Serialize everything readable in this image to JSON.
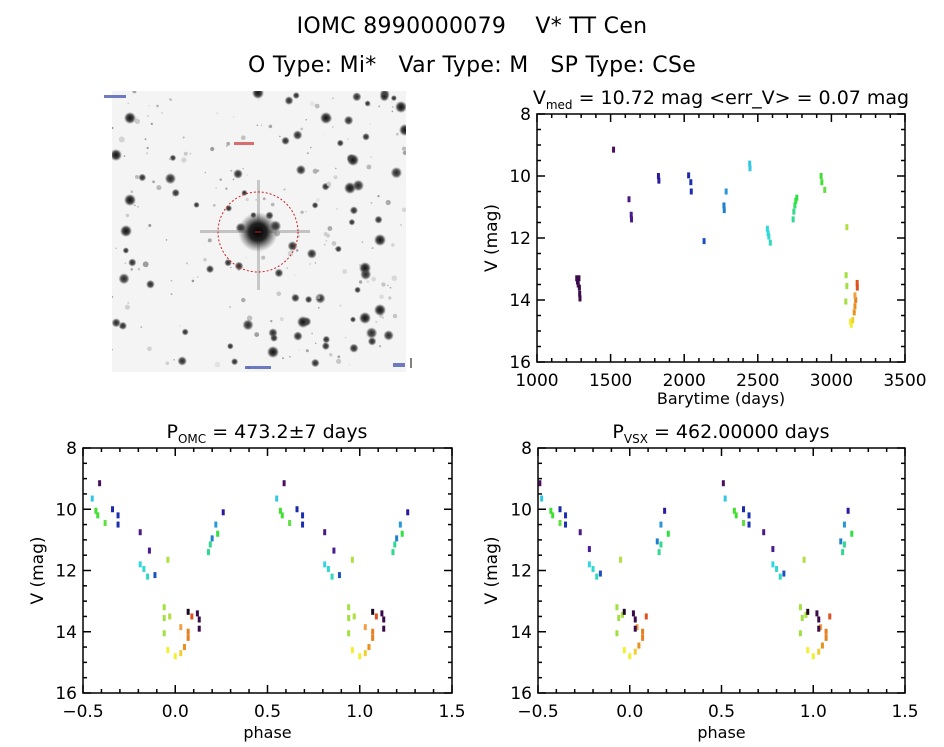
{
  "header": {
    "title": "IOMC 8990000079    V* TT Cen",
    "subtitle": "O Type: Mi*   Var Type: M   SP Type: CSe"
  },
  "sky_image": {
    "description": "Greyscale star field thumbnail centered on target with red dashed circle",
    "marker_color": "#cc2222",
    "labels": [
      "DSS image label",
      "target label",
      "scale label"
    ]
  },
  "chart_data": [
    {
      "type": "scatter",
      "id": "lightcurve",
      "title": "V_med = 10.72 mag <err_V> = 0.07 mag",
      "title_parts": {
        "main": "V",
        "sub": "med",
        "rest": " = 10.72 mag <err_V> = 0.07 mag"
      },
      "xlabel": "Barytime (days)",
      "ylabel": "V (mag)",
      "xlim": [
        1000,
        3500
      ],
      "ylim": [
        16,
        8
      ],
      "y_inverted": true,
      "xticks": [
        1000,
        1500,
        2000,
        2500,
        3000,
        3500
      ],
      "yticks": [
        8,
        10,
        12,
        14,
        16
      ],
      "x_minor_step": 100,
      "y_minor_step": 0.5,
      "grid": false,
      "colormap": "rainbow by time",
      "points": [
        {
          "x": 1270,
          "y": 13.3,
          "c": "#3a0a4a"
        },
        {
          "x": 1275,
          "y": 13.4,
          "c": "#3a0a4a"
        },
        {
          "x": 1280,
          "y": 13.5,
          "c": "#3a0a4a"
        },
        {
          "x": 1285,
          "y": 13.3,
          "c": "#3a0a4a"
        },
        {
          "x": 1288,
          "y": 13.6,
          "c": "#3a0a4a"
        },
        {
          "x": 1290,
          "y": 13.8,
          "c": "#3a0a4a"
        },
        {
          "x": 1292,
          "y": 13.95,
          "c": "#3a0a4a"
        },
        {
          "x": 1520,
          "y": 9.15,
          "c": "#4a1060"
        },
        {
          "x": 1625,
          "y": 10.75,
          "c": "#4a1a80"
        },
        {
          "x": 1640,
          "y": 11.25,
          "c": "#4a1a90"
        },
        {
          "x": 1642,
          "y": 11.4,
          "c": "#4a1a90"
        },
        {
          "x": 1825,
          "y": 10.0,
          "c": "#2a1aa0"
        },
        {
          "x": 1828,
          "y": 10.15,
          "c": "#2a1aa0"
        },
        {
          "x": 2030,
          "y": 9.98,
          "c": "#1a2aa8"
        },
        {
          "x": 2045,
          "y": 10.2,
          "c": "#1a30b0"
        },
        {
          "x": 2048,
          "y": 10.5,
          "c": "#1a30b0"
        },
        {
          "x": 2135,
          "y": 12.1,
          "c": "#1a50c0"
        },
        {
          "x": 2270,
          "y": 10.95,
          "c": "#2080d0"
        },
        {
          "x": 2272,
          "y": 11.1,
          "c": "#2080d0"
        },
        {
          "x": 2285,
          "y": 10.5,
          "c": "#2a98d8"
        },
        {
          "x": 2445,
          "y": 9.6,
          "c": "#30c8e0"
        },
        {
          "x": 2447,
          "y": 9.75,
          "c": "#30c8e0"
        },
        {
          "x": 2565,
          "y": 11.7,
          "c": "#30d8e0"
        },
        {
          "x": 2570,
          "y": 11.85,
          "c": "#30d8e0"
        },
        {
          "x": 2575,
          "y": 11.95,
          "c": "#30d8d0"
        },
        {
          "x": 2585,
          "y": 12.15,
          "c": "#30d8c0"
        },
        {
          "x": 2740,
          "y": 11.4,
          "c": "#30d890"
        },
        {
          "x": 2745,
          "y": 11.15,
          "c": "#30d890"
        },
        {
          "x": 2752,
          "y": 10.95,
          "c": "#30e060"
        },
        {
          "x": 2758,
          "y": 10.8,
          "c": "#30e040"
        },
        {
          "x": 2765,
          "y": 10.7,
          "c": "#30e040"
        },
        {
          "x": 2930,
          "y": 10.0,
          "c": "#40e030"
        },
        {
          "x": 2935,
          "y": 10.2,
          "c": "#40e030"
        },
        {
          "x": 2955,
          "y": 10.45,
          "c": "#60e040"
        },
        {
          "x": 3105,
          "y": 11.65,
          "c": "#b0e040"
        },
        {
          "x": 3100,
          "y": 13.2,
          "c": "#a0e040"
        },
        {
          "x": 3105,
          "y": 13.55,
          "c": "#a0e040"
        },
        {
          "x": 3098,
          "y": 14.05,
          "c": "#a0e040"
        },
        {
          "x": 3130,
          "y": 14.7,
          "c": "#f0f030"
        },
        {
          "x": 3135,
          "y": 14.8,
          "c": "#f0f030"
        },
        {
          "x": 3145,
          "y": 14.65,
          "c": "#f0d030"
        },
        {
          "x": 3155,
          "y": 14.4,
          "c": "#e89020"
        },
        {
          "x": 3160,
          "y": 14.2,
          "c": "#e89020"
        },
        {
          "x": 3165,
          "y": 14.0,
          "c": "#e88020"
        },
        {
          "x": 3160,
          "y": 13.85,
          "c": "#f0a040"
        },
        {
          "x": 3175,
          "y": 13.45,
          "c": "#e05020"
        },
        {
          "x": 3176,
          "y": 13.6,
          "c": "#e05020"
        }
      ]
    },
    {
      "type": "scatter",
      "id": "phase_omc",
      "title": "P_OMC = 473.2±7 days",
      "title_parts": {
        "main": "P",
        "sub": "OMC",
        "rest": " = 473.2±7 days"
      },
      "xlabel": "phase",
      "ylabel": "V (mag)",
      "xlim": [
        -0.5,
        1.5
      ],
      "ylim": [
        16,
        8
      ],
      "y_inverted": true,
      "xticks": [
        "-0.5",
        "0.0",
        "0.5",
        "1.0",
        "1.5"
      ],
      "yticks": [
        8,
        10,
        12,
        14,
        16
      ],
      "x_minor_step": 0.1,
      "y_minor_step": 0.5,
      "grid": false,
      "period_days": 473.2,
      "points": [
        {
          "x": -0.41,
          "y": 9.15,
          "c": "#4a1060"
        },
        {
          "x": -0.45,
          "y": 9.65,
          "c": "#30c8e0"
        },
        {
          "x": -0.43,
          "y": 10.05,
          "c": "#40e030"
        },
        {
          "x": -0.42,
          "y": 10.2,
          "c": "#40e030"
        },
        {
          "x": -0.38,
          "y": 10.45,
          "c": "#60e040"
        },
        {
          "x": -0.34,
          "y": 10.0,
          "c": "#1a2aa8"
        },
        {
          "x": -0.31,
          "y": 10.2,
          "c": "#1a30b0"
        },
        {
          "x": -0.31,
          "y": 10.5,
          "c": "#1a30b0"
        },
        {
          "x": -0.19,
          "y": 10.75,
          "c": "#4a1a80"
        },
        {
          "x": -0.14,
          "y": 11.35,
          "c": "#4a1a90"
        },
        {
          "x": -0.19,
          "y": 11.8,
          "c": "#30d8e0"
        },
        {
          "x": -0.17,
          "y": 11.95,
          "c": "#30d8d0"
        },
        {
          "x": -0.15,
          "y": 12.2,
          "c": "#30d8c0"
        },
        {
          "x": -0.11,
          "y": 12.15,
          "c": "#1a50c0"
        },
        {
          "x": -0.04,
          "y": 11.65,
          "c": "#b0e040"
        },
        {
          "x": 0.18,
          "y": 11.4,
          "c": "#30d890"
        },
        {
          "x": 0.19,
          "y": 11.15,
          "c": "#30d890"
        },
        {
          "x": 0.2,
          "y": 10.95,
          "c": "#2080d0"
        },
        {
          "x": 0.23,
          "y": 10.8,
          "c": "#30e040"
        },
        {
          "x": 0.22,
          "y": 10.5,
          "c": "#2a98d8"
        },
        {
          "x": 0.26,
          "y": 10.1,
          "c": "#2a1aa0"
        },
        {
          "x": -0.06,
          "y": 13.2,
          "c": "#a0e040"
        },
        {
          "x": -0.06,
          "y": 13.55,
          "c": "#a0e040"
        },
        {
          "x": -0.06,
          "y": 14.05,
          "c": "#a0e040"
        },
        {
          "x": -0.03,
          "y": 13.5,
          "c": "#b0e040"
        },
        {
          "x": -0.04,
          "y": 14.6,
          "c": "#f0f030"
        },
        {
          "x": 0.0,
          "y": 14.8,
          "c": "#f0f030"
        },
        {
          "x": 0.03,
          "y": 14.7,
          "c": "#f0d030"
        },
        {
          "x": 0.05,
          "y": 14.5,
          "c": "#e89020"
        },
        {
          "x": 0.07,
          "y": 14.2,
          "c": "#e88020"
        },
        {
          "x": 0.07,
          "y": 14.0,
          "c": "#e88020"
        },
        {
          "x": 0.03,
          "y": 13.85,
          "c": "#f0a040"
        },
        {
          "x": 0.09,
          "y": 13.5,
          "c": "#e05020"
        },
        {
          "x": 0.07,
          "y": 13.35,
          "c": "#1a0a20"
        },
        {
          "x": 0.12,
          "y": 13.4,
          "c": "#3a0a4a"
        },
        {
          "x": 0.13,
          "y": 13.6,
          "c": "#3a0a4a"
        },
        {
          "x": 0.13,
          "y": 13.9,
          "c": "#3a0a4a"
        }
      ],
      "repeat_offset": 1.0
    },
    {
      "type": "scatter",
      "id": "phase_vsx",
      "title": "P_VSX = 462.00000 days",
      "title_parts": {
        "main": "P",
        "sub": "VSX",
        "rest": " = 462.00000 days"
      },
      "xlabel": "phase",
      "ylabel": "V (mag)",
      "xlim": [
        -0.5,
        1.5
      ],
      "ylim": [
        16,
        8
      ],
      "y_inverted": true,
      "xticks": [
        "-0.5",
        "0.0",
        "0.5",
        "1.0",
        "1.5"
      ],
      "yticks": [
        8,
        10,
        12,
        14,
        16
      ],
      "x_minor_step": 0.1,
      "y_minor_step": 0.5,
      "grid": false,
      "period_days": 462.0,
      "points": [
        {
          "x": -0.49,
          "y": 9.15,
          "c": "#4a1060"
        },
        {
          "x": -0.48,
          "y": 9.65,
          "c": "#30c8e0"
        },
        {
          "x": -0.43,
          "y": 10.05,
          "c": "#40e030"
        },
        {
          "x": -0.42,
          "y": 10.2,
          "c": "#40e030"
        },
        {
          "x": -0.38,
          "y": 10.45,
          "c": "#60e040"
        },
        {
          "x": -0.38,
          "y": 10.0,
          "c": "#1a2aa8"
        },
        {
          "x": -0.35,
          "y": 10.2,
          "c": "#1a30b0"
        },
        {
          "x": -0.35,
          "y": 10.5,
          "c": "#1a30b0"
        },
        {
          "x": -0.27,
          "y": 10.75,
          "c": "#4a1a80"
        },
        {
          "x": -0.22,
          "y": 11.3,
          "c": "#4a1a90"
        },
        {
          "x": -0.22,
          "y": 11.8,
          "c": "#30d8e0"
        },
        {
          "x": -0.2,
          "y": 11.95,
          "c": "#30d8d0"
        },
        {
          "x": -0.18,
          "y": 12.2,
          "c": "#30d8c0"
        },
        {
          "x": -0.16,
          "y": 12.1,
          "c": "#1a50c0"
        },
        {
          "x": -0.05,
          "y": 11.65,
          "c": "#b0e040"
        },
        {
          "x": 0.16,
          "y": 11.4,
          "c": "#30d890"
        },
        {
          "x": 0.17,
          "y": 11.15,
          "c": "#30d890"
        },
        {
          "x": 0.15,
          "y": 11.05,
          "c": "#2080d0"
        },
        {
          "x": 0.21,
          "y": 10.8,
          "c": "#30e040"
        },
        {
          "x": 0.17,
          "y": 10.5,
          "c": "#2a98d8"
        },
        {
          "x": 0.19,
          "y": 10.05,
          "c": "#2a1aa0"
        },
        {
          "x": -0.07,
          "y": 13.2,
          "c": "#a0e040"
        },
        {
          "x": -0.06,
          "y": 13.55,
          "c": "#a0e040"
        },
        {
          "x": -0.07,
          "y": 14.05,
          "c": "#a0e040"
        },
        {
          "x": -0.04,
          "y": 13.45,
          "c": "#b0e040"
        },
        {
          "x": -0.03,
          "y": 14.6,
          "c": "#f0f030"
        },
        {
          "x": 0.0,
          "y": 14.8,
          "c": "#f0f030"
        },
        {
          "x": 0.03,
          "y": 14.65,
          "c": "#f0d030"
        },
        {
          "x": 0.05,
          "y": 14.45,
          "c": "#e89020"
        },
        {
          "x": 0.07,
          "y": 14.2,
          "c": "#e88020"
        },
        {
          "x": 0.07,
          "y": 14.0,
          "c": "#e88020"
        },
        {
          "x": 0.04,
          "y": 13.85,
          "c": "#f0a040"
        },
        {
          "x": 0.09,
          "y": 13.5,
          "c": "#e05020"
        },
        {
          "x": -0.03,
          "y": 13.35,
          "c": "#1a0a20"
        },
        {
          "x": 0.02,
          "y": 13.4,
          "c": "#3a0a4a"
        },
        {
          "x": 0.03,
          "y": 13.6,
          "c": "#3a0a4a"
        },
        {
          "x": 0.03,
          "y": 13.9,
          "c": "#3a0a4a"
        }
      ],
      "repeat_offset": 1.0
    }
  ]
}
